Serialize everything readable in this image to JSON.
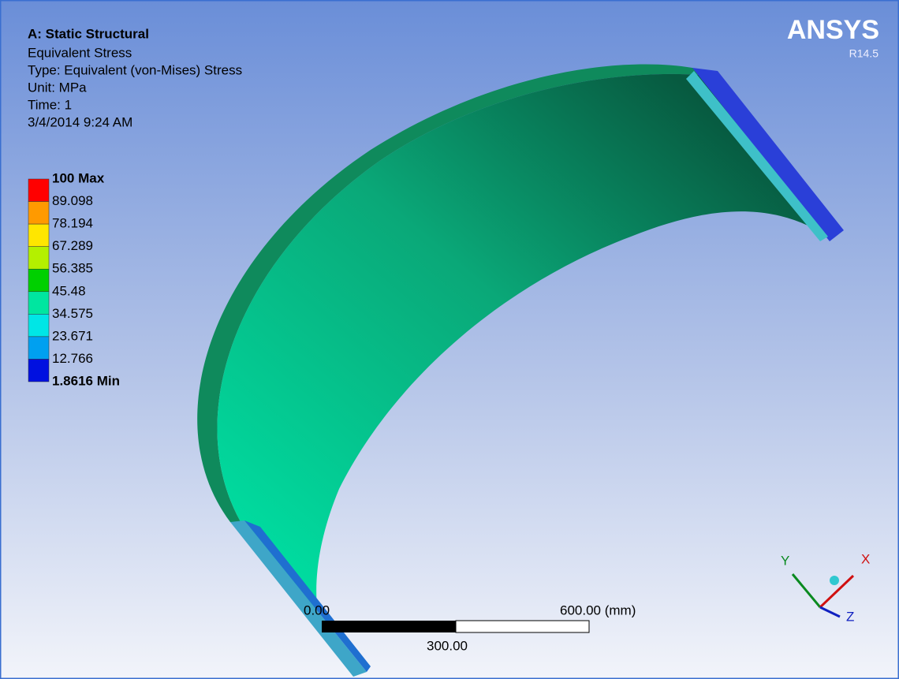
{
  "header": {
    "title": "A: Static Structural",
    "lines": [
      "Equivalent Stress",
      "Type: Equivalent (von-Mises) Stress",
      "Unit: MPa",
      "Time: 1",
      "3/4/2014 9:24 AM"
    ]
  },
  "legend": {
    "labels": [
      "100 Max",
      "89.098",
      "78.194",
      "67.289",
      "56.385",
      "45.48",
      "34.575",
      "23.671",
      "12.766",
      "1.8616 Min"
    ]
  },
  "logo": {
    "name": "ANSYS",
    "version": "R14.5"
  },
  "scale_bar": {
    "left": "0.00",
    "right": "600.00 (mm)",
    "middle": "300.00"
  },
  "triad": {
    "x": "X",
    "y": "Y",
    "z": "Z"
  }
}
